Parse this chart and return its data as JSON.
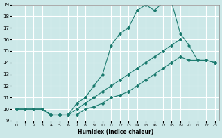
{
  "xlabel": "Humidex (Indice chaleur)",
  "background_color": "#cce8e8",
  "grid_color": "#ffffff",
  "line_color": "#1a7a6e",
  "line1_x": [
    0,
    1,
    2,
    3,
    4,
    5,
    6,
    7,
    8,
    9,
    10,
    11,
    12,
    13,
    14,
    15,
    16,
    17,
    18,
    19,
    20,
    21,
    22,
    23
  ],
  "line1_y": [
    10,
    10,
    10,
    10,
    9.5,
    9.5,
    9.5,
    10.5,
    11,
    12,
    13,
    15.5,
    16.5,
    17,
    18.5,
    19.0,
    18.5,
    19.2,
    19.2,
    16.5,
    15.5,
    14.2,
    14.2,
    14.0
  ],
  "line2_x": [
    0,
    1,
    2,
    3,
    4,
    5,
    6,
    7,
    8,
    9,
    10,
    11,
    12,
    13,
    14,
    15,
    16,
    17,
    18,
    19
  ],
  "line2_y": [
    10,
    10,
    10,
    10,
    9.5,
    9.5,
    9.5,
    10.0,
    10.5,
    11.0,
    11.5,
    12.0,
    12.5,
    13.0,
    13.5,
    14.0,
    14.5,
    15.0,
    15.5,
    16.0
  ],
  "line3_x": [
    0,
    1,
    2,
    3,
    4,
    5,
    6,
    7,
    8,
    9,
    10,
    11,
    12,
    13,
    14,
    15,
    16,
    17,
    18,
    19,
    20,
    21,
    22,
    23
  ],
  "line3_y": [
    10,
    10,
    10,
    10,
    9.5,
    9.5,
    9.5,
    9.5,
    10.0,
    10.2,
    10.5,
    11.0,
    11.2,
    11.5,
    12.0,
    12.5,
    13.0,
    13.5,
    14.0,
    14.5,
    14.2,
    14.2,
    14.2,
    14.0
  ],
  "xlim_min": -0.5,
  "xlim_max": 23.5,
  "ylim_min": 9,
  "ylim_max": 19,
  "yticks": [
    9,
    10,
    11,
    12,
    13,
    14,
    15,
    16,
    17,
    18,
    19
  ],
  "xticks": [
    0,
    1,
    2,
    3,
    4,
    5,
    6,
    7,
    8,
    9,
    10,
    11,
    12,
    13,
    14,
    15,
    16,
    17,
    18,
    19,
    20,
    21,
    22,
    23
  ]
}
